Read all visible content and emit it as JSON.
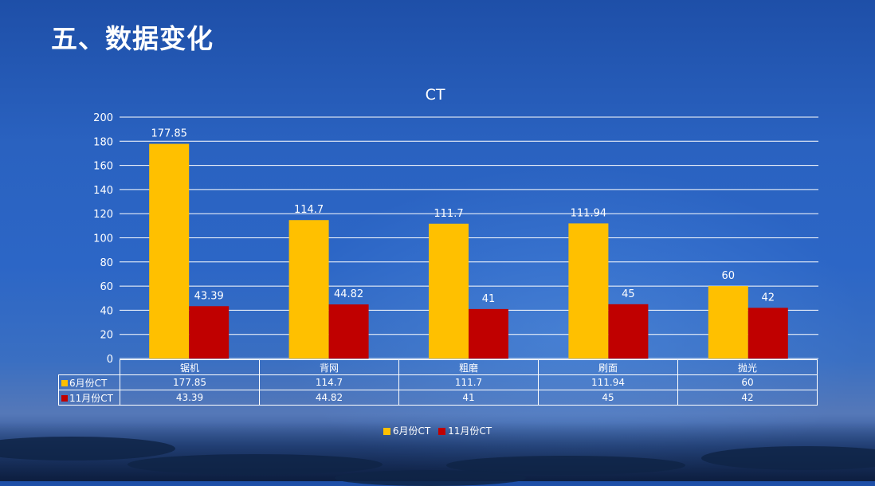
{
  "page": {
    "title": "五、数据变化"
  },
  "colors": {
    "series_june": "#FFC000",
    "series_november": "#C00000",
    "gridline": "#FFFFFF",
    "text": "#FFFFFF"
  },
  "chart_data": {
    "type": "bar",
    "title": "CT",
    "categories": [
      "锯机",
      "背网",
      "粗磨",
      "刷面",
      "抛光"
    ],
    "series": [
      {
        "name": "6月份CT",
        "values": [
          177.85,
          114.7,
          111.7,
          111.94,
          60
        ],
        "labels": [
          "177.85",
          "114.7",
          "111.7",
          "111.94",
          "60"
        ]
      },
      {
        "name": "11月份CT",
        "values": [
          43.39,
          44.82,
          41,
          45,
          42
        ],
        "labels": [
          "43.39",
          "44.82",
          "41",
          "45",
          "42"
        ]
      }
    ],
    "ylim": [
      0,
      200
    ],
    "yticks": [
      "0",
      "20",
      "40",
      "60",
      "80",
      "100",
      "120",
      "140",
      "160",
      "180",
      "200"
    ],
    "grid": true,
    "legend_position": "bottom",
    "data_table": true
  }
}
